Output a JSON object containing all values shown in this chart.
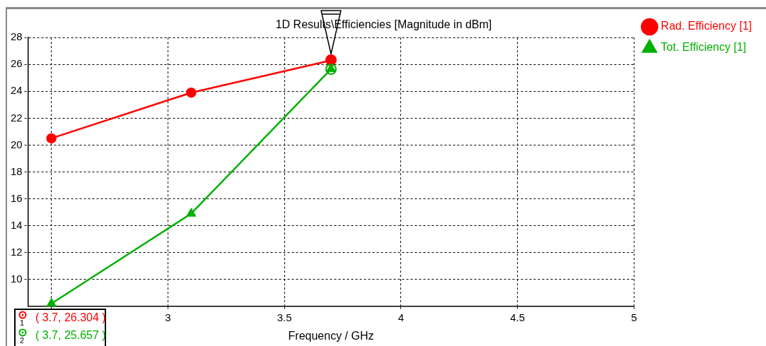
{
  "chart_data": {
    "type": "line",
    "title": "1D Results\\Efficiencies [Magnitude in dBm]",
    "xlabel": "Frequency / GHz",
    "series": [
      {
        "name": "Rad. Efficiency [1]",
        "color": "#ff0000",
        "marker": "circle",
        "x": [
          2.5,
          3.1,
          3.7
        ],
        "values": [
          20.5,
          23.9,
          26.304
        ]
      },
      {
        "name": "Tot. Efficiency [1]",
        "color": "#00b000",
        "marker": "triangle",
        "x": [
          2.5,
          3.1,
          3.7
        ],
        "values": [
          8.2,
          14.9,
          25.657
        ]
      }
    ],
    "xlim": [
      2.4,
      5
    ],
    "xticks": [
      {
        "value": 2.5,
        "label": null
      },
      3,
      3.5,
      4,
      4.5,
      5
    ],
    "ylim": [
      8,
      28
    ],
    "yticks": [
      10,
      12,
      14,
      16,
      18,
      20,
      22,
      24,
      26,
      28
    ],
    "grid": true,
    "legend": "top right",
    "line_style": "solid",
    "annotations": [
      "1",
      "2",
      "( 3.7, 26.304 )",
      "( 3.7, 25.657 )"
    ]
  }
}
